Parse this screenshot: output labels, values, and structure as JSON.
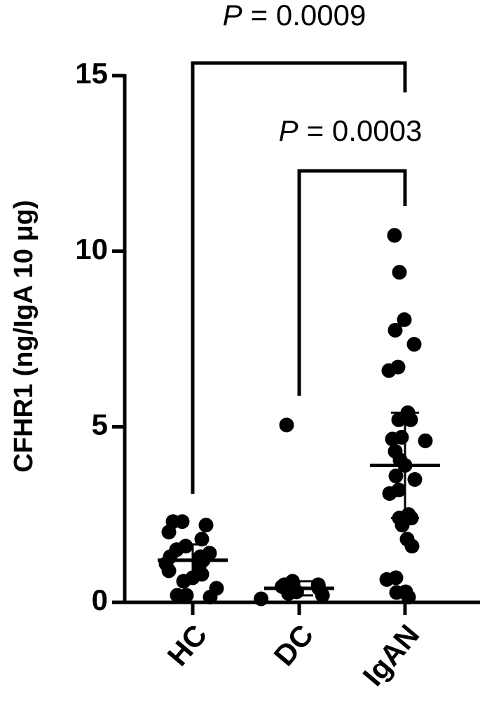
{
  "chart_data": {
    "type": "dot",
    "ylabel": "CFHR1  (ng/IgA 10 μg)",
    "categories": [
      "HC",
      "DC",
      "IgAN"
    ],
    "color": "#000000",
    "ylim": [
      0,
      15
    ],
    "yticks": [
      0,
      5,
      10,
      15
    ],
    "groups": [
      {
        "values": [
          2.3,
          2.3,
          2.2,
          2.0,
          1.8,
          1.6,
          1.5,
          1.4,
          1.3,
          1.3,
          1.2,
          1.1,
          1.0,
          0.9,
          0.8,
          0.7,
          0.6,
          0.4,
          0.2,
          0.2,
          0.15
        ],
        "mean": 1.2,
        "sd": 0.45
      },
      {
        "values": [
          5.05,
          0.6,
          0.5,
          0.5,
          0.45,
          0.4,
          0.3,
          0.25,
          0.2,
          0.1
        ],
        "mean": 0.4,
        "sd": 0.2
      },
      {
        "values": [
          10.45,
          9.4,
          8.05,
          7.75,
          7.35,
          6.7,
          6.6,
          5.4,
          5.2,
          5.2,
          4.7,
          4.65,
          4.6,
          4.3,
          4.05,
          3.9,
          3.6,
          3.5,
          3.2,
          3.1,
          2.5,
          2.4,
          2.4,
          2.2,
          1.8,
          1.6,
          0.7,
          0.65,
          0.3,
          0.28,
          0.15
        ],
        "mean": 3.9,
        "sd": 1.5
      }
    ],
    "annotations": [
      {
        "symbol": "P",
        "text": "= 0.0009"
      },
      {
        "symbol": "P",
        "text": "= 0.0003"
      }
    ]
  }
}
